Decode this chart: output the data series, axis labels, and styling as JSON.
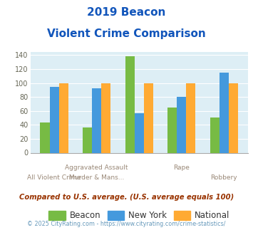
{
  "title_line1": "2019 Beacon",
  "title_line2": "Violent Crime Comparison",
  "beacon_values": [
    43,
    36,
    138,
    65,
    51
  ],
  "ny_values": [
    95,
    92,
    57,
    80,
    115
  ],
  "national_values": [
    100,
    100,
    100,
    100,
    100
  ],
  "beacon_color": "#77bb44",
  "ny_color": "#4499dd",
  "national_color": "#ffaa33",
  "bg_color": "#ddeef5",
  "title_color": "#1155bb",
  "legend_labels": [
    "Beacon",
    "New York",
    "National"
  ],
  "xtick_row1": [
    "",
    "Aggravated Assault",
    "",
    "Rape",
    ""
  ],
  "xtick_row2": [
    "All Violent Crime",
    "Murder & Mans...",
    "",
    "",
    "Robbery"
  ],
  "footer1": "Compared to U.S. average. (U.S. average equals 100)",
  "footer2": "© 2025 CityRating.com - https://www.cityrating.com/crime-statistics/",
  "footer1_color": "#993300",
  "footer2_color": "#6699bb",
  "footer2_prefix_color": "#888888",
  "ylim": [
    0,
    145
  ],
  "yticks": [
    0,
    20,
    40,
    60,
    80,
    100,
    120,
    140
  ]
}
